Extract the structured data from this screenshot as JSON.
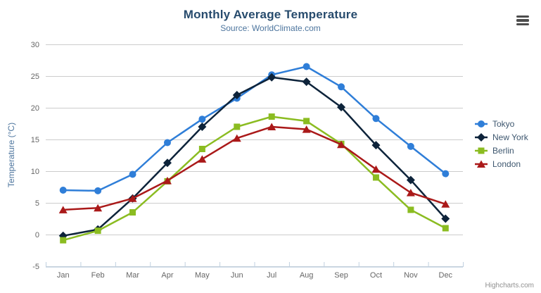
{
  "credits": "Highcharts.com",
  "export_menu_icon": "hamburger-icon",
  "colors": {
    "title_text": "#274b6d",
    "subtitle_text": "#4d759e",
    "axis_label_text": "#666666",
    "grid_line": "#cccccc",
    "axis_line": "#c0d0e0",
    "legend_text": "#3e576f",
    "credits_text": "#909090",
    "tokyo": "#2f7ed8",
    "new_york": "#0d233a",
    "berlin": "#8bbc21",
    "london": "#aa1919"
  },
  "chart_data": {
    "type": "line",
    "title": "Monthly Average Temperature",
    "subtitle": "Source: WorldClimate.com",
    "categories": [
      "Jan",
      "Feb",
      "Mar",
      "Apr",
      "May",
      "Jun",
      "Jul",
      "Aug",
      "Sep",
      "Oct",
      "Nov",
      "Dec"
    ],
    "xlabel": "",
    "ylabel": "Temperature (°C)",
    "ylim": [
      -5,
      30
    ],
    "yticks": [
      -5,
      0,
      5,
      10,
      15,
      20,
      25,
      30
    ],
    "grid": true,
    "legend_position": "right",
    "series": [
      {
        "name": "Tokyo",
        "color": "#2f7ed8",
        "marker": "circle",
        "values": [
          7.0,
          6.9,
          9.5,
          14.5,
          18.2,
          21.5,
          25.2,
          26.5,
          23.3,
          18.3,
          13.9,
          9.6
        ]
      },
      {
        "name": "New York",
        "color": "#0d233a",
        "marker": "diamond",
        "values": [
          -0.2,
          0.8,
          5.7,
          11.3,
          17.0,
          22.0,
          24.8,
          24.1,
          20.1,
          14.1,
          8.6,
          2.5
        ]
      },
      {
        "name": "Berlin",
        "color": "#8bbc21",
        "marker": "square",
        "values": [
          -0.9,
          0.6,
          3.5,
          8.4,
          13.5,
          17.0,
          18.6,
          17.9,
          14.3,
          9.0,
          3.9,
          1.0
        ]
      },
      {
        "name": "London",
        "color": "#aa1919",
        "marker": "triangle",
        "values": [
          3.9,
          4.2,
          5.7,
          8.5,
          11.9,
          15.2,
          17.0,
          16.6,
          14.2,
          10.3,
          6.6,
          4.8
        ]
      }
    ]
  }
}
